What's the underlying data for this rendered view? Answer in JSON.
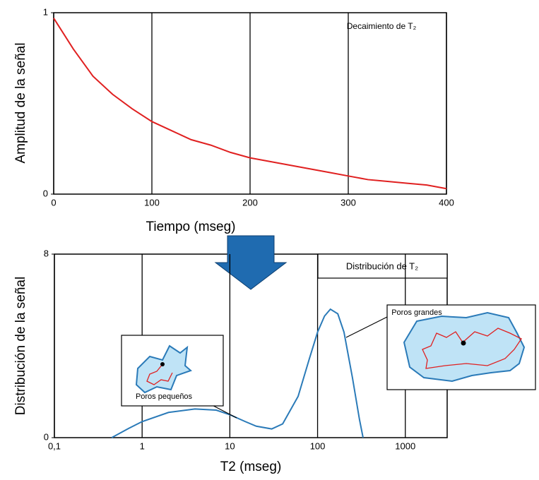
{
  "chart_data": [
    {
      "type": "line",
      "title": "Decaimiento de T₂",
      "x_label": "Tiempo (mseg)",
      "y_label": "Amplitud de la señal",
      "x": [
        0,
        20,
        40,
        60,
        80,
        100,
        120,
        140,
        160,
        180,
        200,
        220,
        240,
        260,
        280,
        300,
        320,
        340,
        360,
        380,
        400
      ],
      "values": [
        0.97,
        0.8,
        0.65,
        0.55,
        0.47,
        0.4,
        0.35,
        0.3,
        0.27,
        0.23,
        0.2,
        0.18,
        0.16,
        0.14,
        0.12,
        0.1,
        0.08,
        0.07,
        0.06,
        0.05,
        0.03
      ],
      "color": "#e02020",
      "xlim": [
        0,
        400
      ],
      "ylim": [
        0,
        1
      ],
      "xticks": [
        0,
        100,
        200,
        300,
        400
      ],
      "yticks": [
        0,
        1
      ],
      "grid": true,
      "log_x": false
    },
    {
      "type": "line",
      "title": "Distribución de T₂",
      "x_label": "T2 (mseg)",
      "y_label": "Distribución de la señal",
      "x": [
        0.45,
        0.7,
        1,
        2,
        4,
        7,
        10,
        15,
        20,
        30,
        40,
        60,
        80,
        100,
        120,
        140,
        170,
        200,
        250,
        300,
        330
      ],
      "values": [
        0,
        0.4,
        0.7,
        1.1,
        1.25,
        1.2,
        1.0,
        0.7,
        0.5,
        0.38,
        0.6,
        1.8,
        3.4,
        4.6,
        5.3,
        5.6,
        5.4,
        4.6,
        2.6,
        0.8,
        0
      ],
      "color": "#2a7ab8",
      "xlim": [
        0.1,
        3000
      ],
      "ylim": [
        0,
        8
      ],
      "xticks": [
        {
          "value": 0.1,
          "label": "0,1"
        },
        1,
        10,
        100,
        1000
      ],
      "yticks": [
        0,
        8
      ],
      "grid": true,
      "log_x": true,
      "annotations": [
        "Poros pequeños",
        "Poros grandes"
      ]
    }
  ]
}
